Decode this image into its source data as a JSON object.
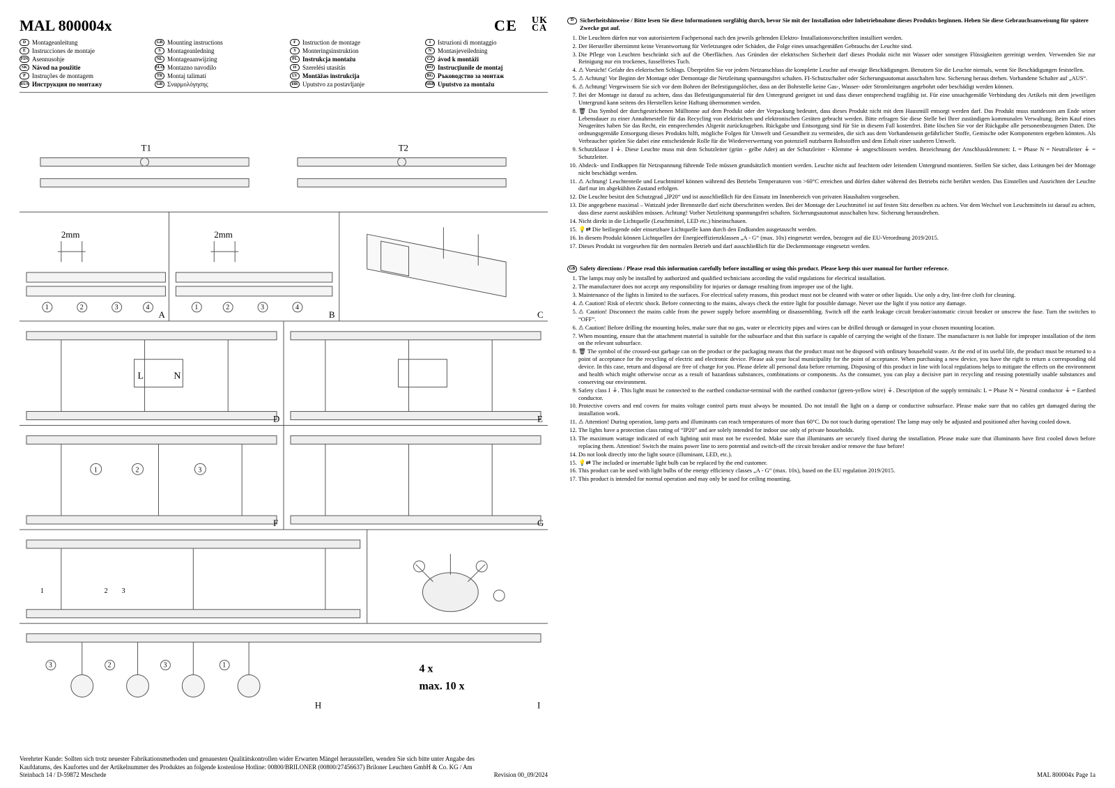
{
  "header": {
    "title": "MAL 800004x",
    "ce_mark": "C E",
    "ukca_top": "UK",
    "ukca_bottom": "CA"
  },
  "languages": [
    {
      "code": "D",
      "label": "Montageanleitung",
      "bold": false
    },
    {
      "code": "GB",
      "label": "Mounting instructions",
      "bold": false
    },
    {
      "code": "F",
      "label": "Instruction de montage",
      "bold": false
    },
    {
      "code": "I",
      "label": "Istruzioni di montaggio",
      "bold": false
    },
    {
      "code": "E",
      "label": "Instrucciones de montaje",
      "bold": false
    },
    {
      "code": "S",
      "label": "Montageanledning",
      "bold": false
    },
    {
      "code": "S",
      "label": "Monteringsinstruktion",
      "bold": false
    },
    {
      "code": "N",
      "label": "Montasjeveiledning",
      "bold": false
    },
    {
      "code": "FIN",
      "label": "Asennusohje",
      "bold": false
    },
    {
      "code": "NL",
      "label": "Montageaanwijzing",
      "bold": false
    },
    {
      "code": "PL",
      "label": "Instrukcja montażu",
      "bold": true
    },
    {
      "code": "CZ",
      "label": "ávod k montáži",
      "bold": true
    },
    {
      "code": "SK",
      "label": "Návod na použitie",
      "bold": true
    },
    {
      "code": "SLO",
      "label": "Montazno navodilo",
      "bold": false
    },
    {
      "code": "H",
      "label": "Szerelési utasítás",
      "bold": false
    },
    {
      "code": "RO",
      "label": "Instrucţiunile de montaj",
      "bold": true
    },
    {
      "code": "P",
      "label": "Instruções de montagem",
      "bold": false
    },
    {
      "code": "TR",
      "label": "Montaj talimati",
      "bold": false
    },
    {
      "code": "LV",
      "label": "Montāžas instrukcija",
      "bold": true
    },
    {
      "code": "BG",
      "label": "Ръководство за монтаж",
      "bold": true
    },
    {
      "code": "RUS",
      "label": "Инструкция по монтажу",
      "bold": true
    },
    {
      "code": "GR",
      "label": "Σναρμολόγησης",
      "bold": false
    },
    {
      "code": "HR",
      "label": "Uputstvo za postavljanje",
      "bold": false
    },
    {
      "code": "SRB",
      "label": "Uputstvo za montažu",
      "bold": true
    }
  ],
  "diagram": {
    "labels_top": [
      "T1",
      "T2"
    ],
    "dim_left": "2mm",
    "dim_right": "2mm",
    "panels": [
      "A",
      "B",
      "C",
      "D",
      "E",
      "F",
      "G",
      "H",
      "I"
    ],
    "inner_letters": [
      "L",
      "N"
    ],
    "circled": [
      "1",
      "2",
      "3",
      "4"
    ],
    "qty_lines": [
      "4 x",
      "max. 10 x"
    ]
  },
  "footer_left": {
    "text": "Verehrter Kunde: Sollten sich trotz neuester Fabrikationsmethoden und genauesten Qualitätskontrollen wider Erwarten Mängel herausstellen, wenden Sie sich bitte unter Angabe des Kaufdatums, des Kaufortes und der Artikelnummer des Produktes an folgende kostenlose Hotline: 00800/BRILONER (00800/27456637) Briloner Leuchten GmbH & Co. KG / Am Steinbach 14 / D-59872 Meschede",
    "revision": "Revision 00_09/2024"
  },
  "sections": {
    "de": {
      "code": "D",
      "heading": "Sicherheitshinweise / Bitte lesen Sie diese Informationen sorgfältig durch, bevor Sie mit der Installation oder Inbetriebnahme dieses Produkts beginnen. Heben Sie diese Gebrauchsanweisung für spätere Zwecke gut auf.",
      "items": [
        "Die Leuchten dürfen nur von autorisiertem Fachpersonal nach den jeweils geltenden Elektro- Installationsvorschriften installiert werden.",
        "Der Hersteller übernimmt keine Verantwortung für Verletzungen oder Schäden, die Folge eines unsachgemäßen Gebrauchs der Leuchte sind.",
        "Die Pflege von Leuchten beschränkt sich auf die Oberflächen. Aus Gründen der elektrischen Sicherheit darf dieses Produkt nicht mit Wasser oder sonstigen Flüssigkeiten gereinigt werden. Verwenden Sie zur Reinigung nur ein trockenes, fusselfreies Tuch.",
        "⚠ Vorsicht! Gefahr des elektrischen Schlags. Überprüfen Sie vor jedem Netzanschluss die komplette Leuchte auf etwaige Beschädigungen. Benutzen Sie die Leuchte niemals, wenn Sie Beschädigungen feststellen.",
        "⚠ Achtung! Vor Beginn der Montage oder Demontage die Netzleitung spannungsfrei schalten. FI-Schutzschalter oder Sicherungsautomat ausschalten bzw. Sicherung heraus drehen. Vorhandene Schalter auf „AUS“.",
        "⚠ Achtung! Vergewissern Sie sich vor dem Bohren der Befestigungslöcher, dass an der Bohrstelle keine Gas-, Wasser- oder Stromleitungen angebohrt oder beschädigt werden können.",
        "Bei der Montage ist darauf zu achten, dass das Befestigungsmaterial für den Untergrund geeignet ist und dass dieser entsprechend tragfähig ist. Für eine unsachgemäße Verbindung des Artikels mit dem jeweiligen Untergrund kann seitens des Herstellers keine Haftung übernommen werden.",
        "🗑 Das Symbol der durchgestrichenen Mülltonne auf dem Produkt oder der Verpackung bedeutet, dass dieses Produkt nicht mit dem Hausmüll entsorgt werden darf. Das Produkt muss stattdessen am Ende seiner Lebensdauer zu einer Annahmestelle für das Recycling von elektrischen und elektronischen Geräten gebracht werden. Bitte erfragen Sie diese Stelle bei Ihrer zuständigen kommunalen Verwaltung. Beim Kauf eines Neugerätes haben Sie das Recht, ein entsprechendes Altgerät zurückzugeben. Rückgabe und Entsorgung sind für Sie in diesem Fall kostenfrei. Bitte löschen Sie vor der Rückgabe alle personenbezogenen Daten. Die ordnungsgemäße Entsorgung dieses Produkts hilft, mögliche Folgen für Umwelt und Gesundheit zu vermeiden, die sich aus dem Vorhandensein gefährlicher Stoffe, Gemische oder Komponenten ergeben könnten. Als Verbraucher spielen Sie dabei eine entscheidende Rolle für die Wiederverwertung von potenziell nutzbaren Rohstoffen und dem Erhalt einer sauberen Umwelt.",
        "Schutzklasse I ⏚. Diese Leuchte muss mit dem Schutzleiter (grün - gelbe Ader) an der Schutzleiter - Klemme ⏚ angeschlossen werden. Bezeichnung der Anschlussklemmen:  L = Phase  N = Neutralleiter  ⏚ = Schutzleiter.",
        "Abdeck- und Endkappen für Netzspannung führende Teile müssen grundsätzlich montiert werden. Leuchte nicht auf feuchtem oder leitendem Untergrund montieren. Stellen Sie sicher, dass Leitungen bei der Montage nicht beschädigt werden.",
        "⚠ Achtung! Leuchtenteile und Leuchtmittel können während des Betriebs Temperaturen von >60°C erreichen und dürfen daher während des Betriebs nicht berührt werden. Das Einstellen und Ausrichten der Leuchte darf nur im abgekühlten Zustand erfolgen.",
        "Die Leuchte besitzt den Schutzgrad „IP20“ und ist ausschließlich für den Einsatz im Innenbereich von privaten Haushalten vorgesehen.",
        "Die angegebene maximal – Wattzahl jeder Brennstelle darf nicht überschritten werden. Bei der Montage der Leuchtmittel ist auf festen Sitz derselben zu achten. Vor dem Wechsel von Leuchtmitteln ist darauf zu achten, dass diese zuerst auskühlen müssen. Achtung! Vorher Netzleitung spannungsfrei schalten. Sicherungsautomat ausschalten bzw. Sicherung herausdrehen.",
        "Nicht direkt in die Lichtquelle (Leuchtmittel, LED etc.) hineinschauen.",
        "💡⇄ Die beiliegende oder einsetzbare Lichtquelle kann durch den Endkunden ausgetauscht werden.",
        "In diesem Produkt können Lichtquellen der Energieeffizienzklassen „A - G“ (max. 10x) eingesetzt werden, bezogen auf die EU-Verordnung 2019/2015.",
        "Dieses Produkt ist vorgesehen für den normalen Betrieb und darf ausschließlich für die Deckenmontage eingesetzt werden."
      ]
    },
    "en": {
      "code": "GB",
      "heading": "Safety directions / Please read this information carefully before installing or using this product. Please keep this user manual for further reference.",
      "items": [
        "The lamps may only be installed by authorized and qualified technicians according the valid regulations for electrical installation.",
        "The manufacturer does not accept any responsibility for injuries or damage resulting from improper use of the light.",
        "Maintenance of the lights is limited to the surfaces. For electrical safety reasons, this product must not be cleaned with water or other liquids. Use only a dry, lint-free cloth for cleaning.",
        "⚠ Caution! Risk of electric shock. Before connecting to the mains, always check the entire light for possible damage. Never use the light if you notice any damage.",
        "⚠ Caution! Disconnect the mains cable from the power supply before assembling or disassembling. Switch off the earth leakage circuit breaker/automatic circuit breaker or unscrew the fuse. Turn the switches to “OFF”.",
        "⚠ Caution! Before drilling the mounting holes, make sure that no gas, water or electricity pipes and wires can be drilled through or damaged in your chosen mounting location.",
        "When mounting, ensure that the attachment material is suitable for the subsurface and that this surface is capable of carrying the weight of the fixture. The manufacturer is not liable for improper installation of the item on the relevant subsurface.",
        "🗑 The symbol of the crossed-out garbage can on the product or the packaging means that the product must not be disposed with ordinary household waste. At the end of its useful life, the product must be returned to a point of acceptance for the recycling of electric and electronic device. Please ask your local municipality for the point of acceptance. When purchasing a new device, you have the right to return a corresponding old device. In this case, return and disposal are free of charge for you. Please delete all personal data before returning. Disposing of this product in line with local regulations helps to mitigate the effects on the environment and health which might otherwise occur as a result of hazardous substances, combinations or components. As the consumer, you can play a decisive part in recycling and reusing potentially usable substances and conserving our environment.",
        "Safety class I ⏚. This light must be connected to the earthed conductor-terminal with the earthed conductor (green-yellow wire) ⏚. Description of the supply terminals: L = Phase  N = Neutral conductor  ⏚ = Earthed conductor.",
        "Protective covers and end covers for mains voltage control parts must always be mounted. Do not install the light on a damp or conductive subsurface. Please make sure that no cables get damaged during the installation work.",
        "⚠ Attention! During operation, lamp parts and illuminants can reach temperatures of more than 60°C. Do not touch during operation! The lamp may only be adjusted and positioned after having cooled down.",
        "The lights have a protection class rating of “IP20” and are solely intended for indoor use only of private households.",
        "The maximum wattage indicated of each lighting unit must not be exceeded. Make sure that illuminants are securely fixed during the installation. Please make sure that illuminants have first cooled down before replacing them. Attention! Switch the mains power line to zero potential and switch-off the circuit breaker and/or remove the fuse before!",
        "Do not look directly into the light source (illuminant, LED, etc.).",
        "💡⇄ The included or insertable light bulb can be replaced by the end customer.",
        "This product can be used with light bulbs of the energy efficiency classes „A - G“ (max. 10x), based on the EU regulation 2019/2015.",
        "This product is intended for normal operation and may only be used for ceiling mounting."
      ]
    }
  },
  "footer_right": {
    "text": "MAL 800004x Page 1a"
  }
}
